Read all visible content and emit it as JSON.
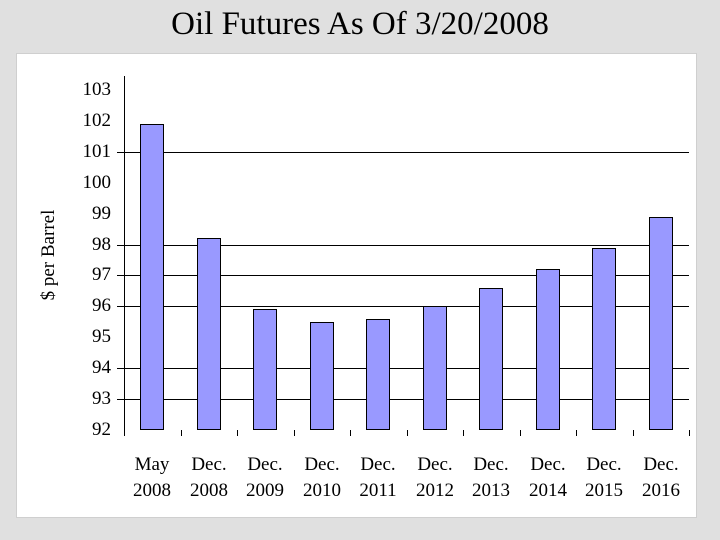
{
  "page": {
    "background_color": "#e0e0e0",
    "panel_color": "#ffffff"
  },
  "title": "Oil Futures As Of 3/20/2008",
  "chart_data": {
    "type": "bar",
    "title": "Oil Futures As Of 3/20/2008",
    "xlabel": "",
    "ylabel": "$ per Barrel",
    "categories": [
      [
        "May",
        "2008"
      ],
      [
        "Dec.",
        "2008"
      ],
      [
        "Dec.",
        "2009"
      ],
      [
        "Dec.",
        "2010"
      ],
      [
        "Dec.",
        "2011"
      ],
      [
        "Dec.",
        "2012"
      ],
      [
        "Dec.",
        "2013"
      ],
      [
        "Dec.",
        "2014"
      ],
      [
        "Dec.",
        "2015"
      ],
      [
        "Dec.",
        "2016"
      ]
    ],
    "values": [
      101.9,
      98.2,
      95.9,
      95.5,
      95.6,
      96.0,
      96.6,
      97.2,
      97.9,
      98.9
    ],
    "ylim": [
      92,
      103
    ],
    "ytick_step": 1,
    "ytick_labels": [
      "92",
      "93",
      "94",
      "95",
      "96",
      "97",
      "98",
      "99",
      "100",
      "101",
      "102",
      "103"
    ],
    "gridline_values": [
      93,
      94,
      96,
      97,
      98,
      101
    ],
    "grid": "horizontal-partial",
    "legend": "none",
    "bar_color": "#9999ff",
    "bar_border_color": "#000000",
    "axis_color": "#000000"
  }
}
